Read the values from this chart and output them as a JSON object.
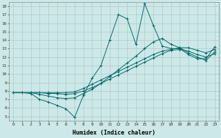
{
  "xlabel": "Humidex (Indice chaleur)",
  "bg_color": "#cce8e8",
  "grid_color": "#b0c8c8",
  "line_color": "#006666",
  "xlim": [
    -0.5,
    23.5
  ],
  "ylim": [
    4.5,
    18.5
  ],
  "xticks": [
    0,
    1,
    2,
    3,
    4,
    5,
    6,
    7,
    8,
    9,
    10,
    11,
    12,
    13,
    14,
    15,
    16,
    17,
    18,
    19,
    20,
    21,
    22,
    23
  ],
  "yticks": [
    5,
    6,
    7,
    8,
    9,
    10,
    11,
    12,
    13,
    14,
    15,
    16,
    17,
    18
  ],
  "series": [
    [
      7.8,
      7.8,
      7.7,
      7.0,
      6.7,
      6.3,
      5.9,
      4.9,
      7.5,
      9.5,
      11.0,
      14.0,
      17.0,
      16.5,
      13.5,
      18.3,
      15.7,
      13.3,
      13.0,
      13.0,
      12.3,
      11.8,
      11.8,
      13.2
    ],
    [
      7.8,
      7.8,
      7.8,
      7.8,
      7.8,
      7.8,
      7.8,
      7.9,
      8.3,
      8.8,
      9.3,
      9.8,
      10.3,
      10.8,
      11.3,
      11.8,
      12.3,
      12.7,
      12.9,
      13.1,
      13.1,
      12.8,
      12.5,
      12.9
    ],
    [
      7.8,
      7.8,
      7.8,
      7.8,
      7.7,
      7.7,
      7.6,
      7.7,
      8.0,
      8.4,
      8.9,
      9.4,
      9.9,
      10.4,
      10.9,
      11.4,
      11.9,
      12.4,
      12.8,
      12.9,
      12.7,
      12.3,
      12.0,
      12.4
    ],
    [
      7.8,
      7.8,
      7.8,
      7.6,
      7.4,
      7.2,
      7.1,
      7.2,
      7.7,
      8.2,
      8.9,
      9.7,
      10.5,
      11.3,
      12.1,
      13.0,
      13.8,
      14.2,
      13.5,
      13.1,
      12.5,
      12.0,
      11.6,
      12.6
    ]
  ]
}
